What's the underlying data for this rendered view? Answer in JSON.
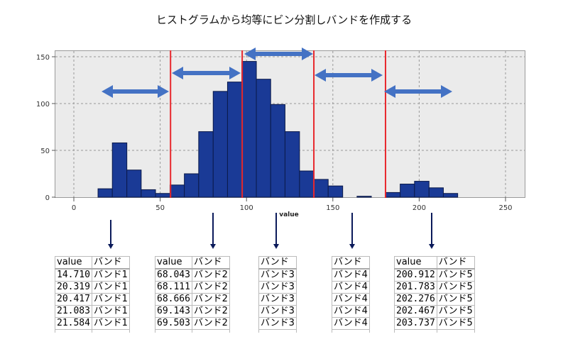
{
  "title": "ヒストグラムから均等にビン分割しバンドを作成する",
  "chart_data": {
    "type": "bar",
    "title": "ヒストグラムから均等にビン分割しバンドを作成する",
    "xlabel": "value",
    "ylabel": "",
    "xlim": [
      -10,
      260
    ],
    "ylim": [
      0,
      155
    ],
    "xticks": [
      0,
      50,
      100,
      150,
      200,
      250
    ],
    "yticks": [
      0,
      50,
      100,
      150
    ],
    "grid": true,
    "bin_edges": [
      14,
      22.3,
      30.7,
      39,
      47.3,
      55.7,
      64,
      72.3,
      80.7,
      89,
      97.3,
      105.7,
      114,
      122.3,
      130.7,
      139,
      147.3,
      155.7,
      164,
      172.3,
      180.7,
      189,
      197.3,
      205.7,
      214,
      222.3
    ],
    "values": [
      9,
      58,
      29,
      8,
      4,
      13,
      25,
      70,
      113,
      123,
      145,
      126,
      99,
      70,
      28,
      19,
      12,
      0,
      1,
      0,
      5,
      14,
      17,
      10,
      4
    ],
    "band_boundaries": [
      56,
      97.5,
      139,
      180.5
    ],
    "bands": [
      "バンド1",
      "バンド2",
      "バンド3",
      "バンド4",
      "バンド5"
    ],
    "bar_color": "#1a3a96",
    "boundary_color": "#e8282d",
    "arrow_color": "#4472c4"
  },
  "tables": [
    {
      "headers": [
        "value",
        "バンド"
      ],
      "rows": [
        [
          "14.710",
          "バンド1"
        ],
        [
          "20.319",
          "バンド1"
        ],
        [
          "20.417",
          "バンド1"
        ],
        [
          "21.083",
          "バンド1"
        ],
        [
          "21.584",
          "バンド1"
        ]
      ]
    },
    {
      "headers": [
        "value",
        "バンド"
      ],
      "rows": [
        [
          "68.043",
          "バンド2"
        ],
        [
          "68.111",
          "バンド2"
        ],
        [
          "68.666",
          "バンド2"
        ],
        [
          "69.143",
          "バンド2"
        ],
        [
          "69.503",
          "バンド2"
        ]
      ]
    },
    {
      "headers": [
        "バンド"
      ],
      "rows": [
        [
          "バンド3"
        ],
        [
          "バンド3"
        ],
        [
          "バンド3"
        ],
        [
          "バンド3"
        ],
        [
          "バンド3"
        ]
      ]
    },
    {
      "headers": [
        "バンド"
      ],
      "rows": [
        [
          "バンド4"
        ],
        [
          "バンド4"
        ],
        [
          "バンド4"
        ],
        [
          "バンド4"
        ],
        [
          "バンド4"
        ]
      ]
    },
    {
      "headers": [
        "value",
        "バンド"
      ],
      "rows": [
        [
          "200.912",
          "バンド5"
        ],
        [
          "201.783",
          "バンド5"
        ],
        [
          "202.276",
          "バンド5"
        ],
        [
          "202.467",
          "バンド5"
        ],
        [
          "203.737",
          "バンド5"
        ]
      ]
    }
  ]
}
